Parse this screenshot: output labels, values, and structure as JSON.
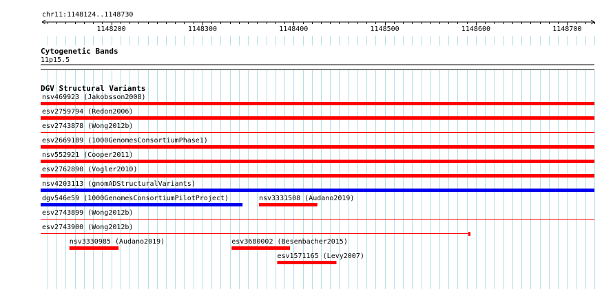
{
  "region": {
    "label": "chr11:1148124..1148730",
    "start": 1148124,
    "end": 1148730
  },
  "ruler": {
    "ticks": [
      "1148200",
      "1148300",
      "1148400",
      "1148500",
      "1148600",
      "1148700"
    ]
  },
  "cytoband": {
    "title": "Cytogenetic Bands",
    "band": "11p15.5"
  },
  "dgv": {
    "title": "DGV Structural Variants",
    "features": [
      {
        "label": "nsv469923 (Jakobsson2008)",
        "start": 1148124,
        "end": 1148730,
        "color": "#ff0000",
        "style": "thick"
      },
      {
        "label": "esv2759794 (Redon2006)",
        "start": 1148124,
        "end": 1148730,
        "color": "#ff0000",
        "style": "thick"
      },
      {
        "label": "esv2743878 (Wong2012b)",
        "start": 1148124,
        "end": 1148730,
        "color": "#ff0000",
        "style": "thin"
      },
      {
        "label": "esv2669189 (1000GenomesConsortiumPhase1)",
        "start": 1148124,
        "end": 1148730,
        "color": "#ff0000",
        "style": "thick"
      },
      {
        "label": "nsv552921 (Cooper2011)",
        "start": 1148124,
        "end": 1148730,
        "color": "#ff0000",
        "style": "thick"
      },
      {
        "label": "esv2762890 (Vogler2010)",
        "start": 1148124,
        "end": 1148730,
        "color": "#ff0000",
        "style": "thick"
      },
      {
        "label": "nsv4203113 (gnomADStructuralVariants)",
        "start": 1148124,
        "end": 1148730,
        "color": "#0000ee",
        "style": "thick"
      },
      {
        "label": "dgv546e59 (1000GenomesConsortiumPilotProject)",
        "start": 1148124,
        "end": 1148344,
        "color": "#0000ee",
        "style": "thick"
      },
      {
        "label": "nsv3331508 (Audano2019)",
        "start": 1148362,
        "end": 1148426,
        "color": "#ff0000",
        "style": "thick"
      },
      {
        "label": "esv2743899 (Wong2012b)",
        "start": 1148124,
        "end": 1148730,
        "color": "#ff0000",
        "style": "thin"
      },
      {
        "label": "esv2743900 (Wong2012b)",
        "start": 1148124,
        "end": 1148594,
        "color": "#ff0000",
        "style": "thin-end"
      },
      {
        "label": "nsv3330985 (Audano2019)",
        "start": 1148154,
        "end": 1148208,
        "color": "#ff0000",
        "style": "thick"
      },
      {
        "label": "esv3680002 (Besenbacher2015)",
        "start": 1148332,
        "end": 1148396,
        "color": "#ff0000",
        "style": "thick"
      },
      {
        "label": "esv1571165 (Levy2007)",
        "start": 1148382,
        "end": 1148447,
        "color": "#ff0000",
        "style": "thick"
      }
    ]
  }
}
